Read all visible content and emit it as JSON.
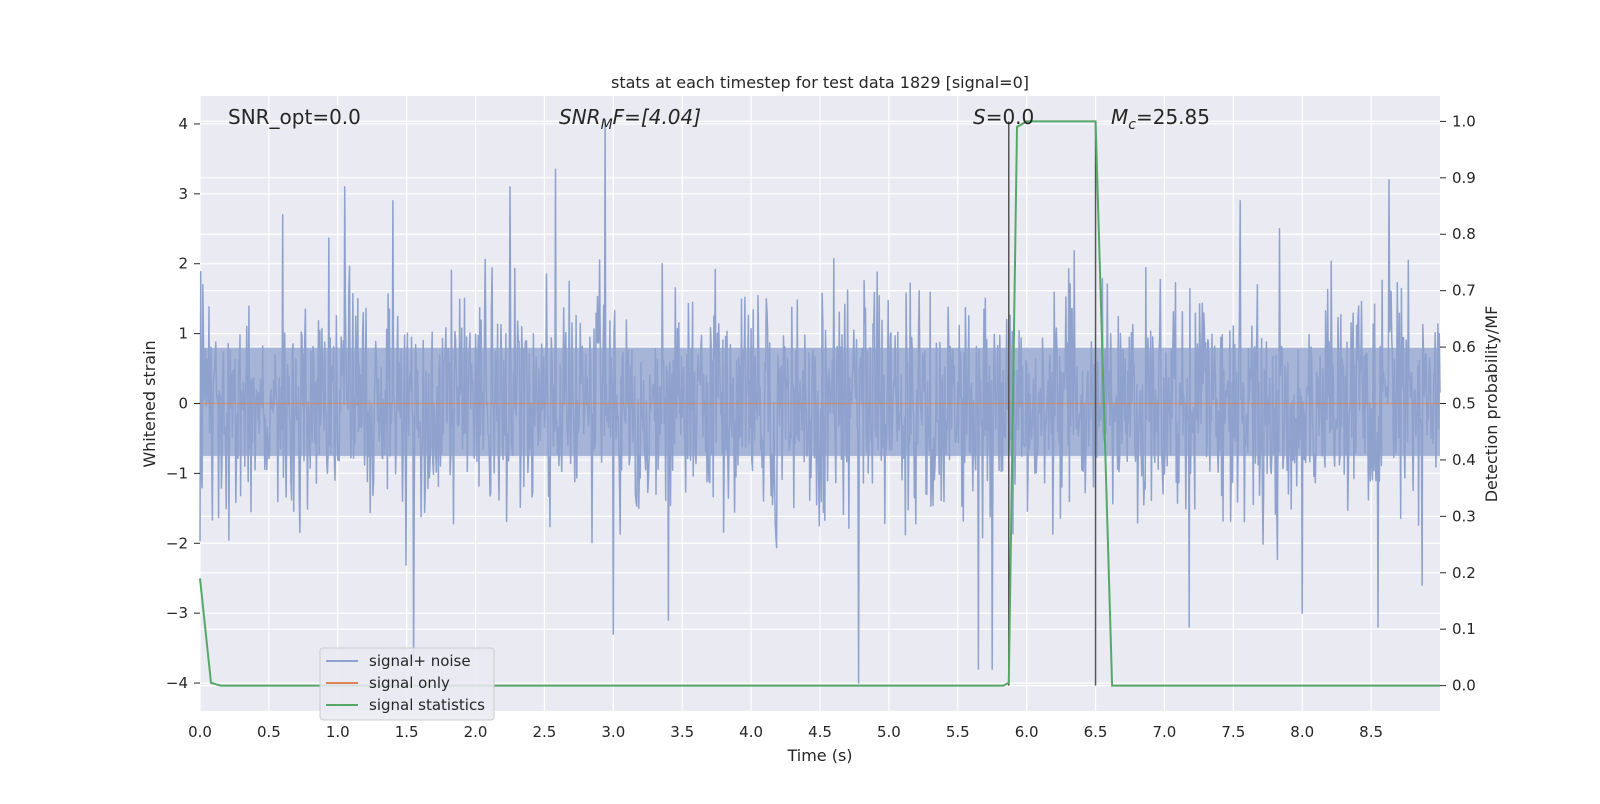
{
  "chart_data": {
    "type": "line",
    "title": "stats at each timestep for test data 1829 [signal=0]",
    "xlabel": "Time (s)",
    "ylabel_left": "Whitened strain",
    "ylabel_right": "Detection probability/MF",
    "xlim": [
      0.0,
      9.0
    ],
    "ylim_left": [
      -4.4,
      4.4
    ],
    "ylim_right": [
      -0.045,
      1.045
    ],
    "x_ticks": [
      "0.0",
      "0.5",
      "1.0",
      "1.5",
      "2.0",
      "2.5",
      "3.0",
      "3.5",
      "4.0",
      "4.5",
      "5.0",
      "5.5",
      "6.0",
      "6.5",
      "7.0",
      "7.5",
      "8.0",
      "8.5"
    ],
    "y_ticks_left": [
      "4",
      "3",
      "2",
      "1",
      "0",
      "−1",
      "−2",
      "−3",
      "−4"
    ],
    "y_ticks_right": [
      "1.0",
      "0.9",
      "0.8",
      "0.7",
      "0.6",
      "0.5",
      "0.4",
      "0.3",
      "0.2",
      "0.1",
      "0.0"
    ],
    "grid": true,
    "legend_position": "lower-left",
    "annotations": {
      "snr_opt": "SNR_opt=0.0",
      "snr_mf_main": "SNR",
      "snr_mf_sub": "M",
      "snr_mf_rest": "F=[4.04]",
      "s_main": "S",
      "s_rest": "=0.0",
      "mc_main": "M",
      "mc_sub": "c",
      "mc_rest": "=25.85"
    },
    "vertical_lines_x": [
      5.87,
      6.5
    ],
    "series": [
      {
        "name": "signal+ noise",
        "axis": "left",
        "color": "#8ea2cd",
        "description_values": {
          "typical_upper": 1.6,
          "typical_lower": -1.5,
          "peaks": [
            [
              0.02,
              1.7
            ],
            [
              0.6,
              2.7
            ],
            [
              1.05,
              3.1
            ],
            [
              1.4,
              2.9
            ],
            [
              1.55,
              -3.7
            ],
            [
              2.25,
              3.1
            ],
            [
              2.58,
              3.35
            ],
            [
              2.94,
              4.05
            ],
            [
              3.0,
              -3.3
            ],
            [
              3.4,
              -3.1
            ],
            [
              4.78,
              -4.0
            ],
            [
              5.65,
              -3.8
            ],
            [
              5.75,
              -3.8
            ],
            [
              7.18,
              -3.2
            ],
            [
              7.55,
              2.9
            ],
            [
              8.0,
              -3.0
            ],
            [
              8.55,
              -3.2
            ],
            [
              8.63,
              3.2
            ]
          ]
        }
      },
      {
        "name": "signal only",
        "axis": "left",
        "color": "#dd8452",
        "values_constant": 0.0
      },
      {
        "name": "signal statistics",
        "axis": "right",
        "color": "#55a868",
        "x": [
          0.0,
          0.08,
          0.15,
          5.83,
          5.87,
          5.93,
          6.0,
          6.47,
          6.5,
          6.62,
          9.0
        ],
        "y": [
          0.19,
          0.005,
          0.0,
          0.0,
          0.005,
          0.99,
          1.0,
          1.0,
          1.0,
          0.0,
          0.0
        ]
      }
    ]
  }
}
